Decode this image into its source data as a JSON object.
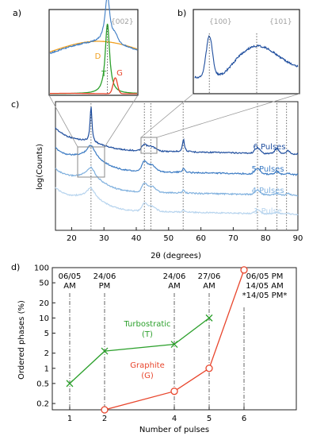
{
  "panels": {
    "a": "a)",
    "b": "b)",
    "c": "c)",
    "d": "d)"
  },
  "colors": {
    "dark_blue": "#1f4e9e",
    "mid_blue": "#3d7cc4",
    "light_blue": "#7fb0de",
    "pale_blue": "#b7d4ee",
    "turbostratic_green": "#2ca02c",
    "graphite_red": "#e8452c",
    "D_orange": "#f0a020",
    "peak_label_gray": "#a0a0a0",
    "axis_black": "#000000"
  },
  "chart_data": [
    {
      "panel": "a",
      "type": "line",
      "title": "",
      "peak_label": "{002}",
      "series": [
        {
          "name": "",
          "color": "dark_blue",
          "role": "measured"
        },
        {
          "name": "D",
          "color": "D_orange"
        },
        {
          "name": "T",
          "color": "turbostratic_green"
        },
        {
          "name": "G",
          "color": "graphite_red"
        }
      ]
    },
    {
      "panel": "b",
      "type": "line",
      "title": "",
      "peak_labels": [
        "{100}",
        "{101}"
      ],
      "series": [
        {
          "name": "",
          "color": "dark_blue"
        }
      ]
    },
    {
      "panel": "c",
      "type": "line",
      "xlabel": "2θ (degrees)",
      "ylabel": "log(Counts)",
      "xlim": [
        15,
        90
      ],
      "x_ticks": [
        20,
        30,
        40,
        50,
        60,
        70,
        80,
        90
      ],
      "x_tick_labels": [
        "20",
        "30",
        "40",
        "50",
        "60",
        "70",
        "80",
        "90"
      ],
      "reference_lines_x": [
        26,
        42.5,
        44.5,
        54.5,
        77.5,
        83.5,
        86.5
      ],
      "peaks": {
        "002": 26.0,
        "100": 42.4,
        "101": 44.5,
        "004": 54.6,
        "110": 77.5,
        "112": 83.5,
        "006": 87.0
      },
      "series": [
        {
          "name": "6 Pulses",
          "color": "dark_blue"
        },
        {
          "name": "5 Pulses",
          "color": "mid_blue"
        },
        {
          "name": "4 Pulses",
          "color": "light_blue"
        },
        {
          "name": "1 Pulse",
          "color": "pale_blue"
        }
      ]
    },
    {
      "panel": "d",
      "type": "line",
      "xlabel": "Number of pulses",
      "ylabel": "Ordered phases (%)",
      "yscale": "log",
      "xlim": [
        0.5,
        7.5
      ],
      "ylim": [
        0.15,
        100
      ],
      "x_ticks": [
        1,
        2,
        4,
        5,
        6
      ],
      "x_tick_labels": [
        "1",
        "2",
        "4",
        "5",
        "6"
      ],
      "y_ticks": [
        0.2,
        0.5,
        1,
        2,
        5,
        10,
        20,
        50,
        100
      ],
      "y_tick_labels": [
        "0.2",
        "0.5",
        "1",
        "2",
        "5",
        "10",
        "20",
        "50",
        "100"
      ],
      "dates": [
        {
          "x": 1,
          "line1": "06/05",
          "line2": "AM",
          "line3": ""
        },
        {
          "x": 2,
          "line1": "24/06",
          "line2": "PM",
          "line3": ""
        },
        {
          "x": 4,
          "line1": "24/06",
          "line2": "AM",
          "line3": ""
        },
        {
          "x": 5,
          "line1": "27/06",
          "line2": "AM",
          "line3": ""
        },
        {
          "x": 6,
          "line1": "06/05 PM",
          "line2": "14/05 AM",
          "line3": "*14/05 PM*"
        }
      ],
      "series": [
        {
          "name": "Turbostratic (T)",
          "label_line1": "Turbostratic",
          "label_line2": "(T)",
          "color": "turbostratic_green",
          "marker": "x",
          "x": [
            1,
            2,
            4,
            5
          ],
          "y": [
            0.5,
            2.2,
            3.0,
            10.0
          ]
        },
        {
          "name": "Graphite (G)",
          "label_line1": "Graphite",
          "label_line2": "(G)",
          "color": "graphite_red",
          "marker": "o",
          "x": [
            2,
            4,
            5,
            6
          ],
          "y": [
            0.15,
            0.35,
            1.0,
            90.0
          ]
        }
      ]
    }
  ]
}
